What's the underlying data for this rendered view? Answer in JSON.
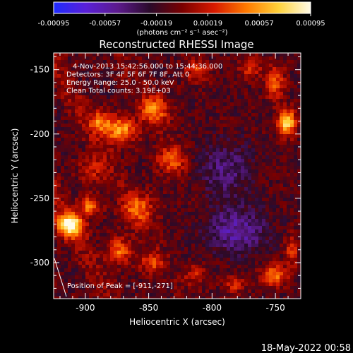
{
  "chart_data": {
    "type": "heatmap",
    "title": "Reconstructed RHESSI Image",
    "colorbar": {
      "min": -0.00095,
      "max": 0.00095,
      "ticks": [
        "-0.00095",
        "-0.00057",
        "-0.00019",
        "0.00019",
        "0.00057",
        "0.00095"
      ],
      "tick_values": [
        -0.00095,
        -0.00057,
        -0.00019,
        0.00019,
        0.00057,
        0.00095
      ],
      "unit_label": "(photons cm⁻² s⁻¹ asec⁻²)",
      "colors": [
        "#1e2bff",
        "#5a20d8",
        "#5c1a8c",
        "#2a0a2a",
        "#7a0000",
        "#d81a00",
        "#ff7a00",
        "#ffd23a",
        "#fffbe8"
      ]
    },
    "xlabel": "Heliocentric X (arcsec)",
    "ylabel": "Heliocentric Y (arcsec)",
    "xlim": [
      -925,
      -730
    ],
    "ylim": [
      -328,
      -137
    ],
    "x_ticks": [
      "-900",
      "-850",
      "-800",
      "-750"
    ],
    "x_tick_values": [
      -900,
      -850,
      -800,
      -750
    ],
    "y_ticks": [
      "-150",
      "-200",
      "-250",
      "-300"
    ],
    "y_tick_values": [
      -150,
      -200,
      -250,
      -300
    ],
    "info_lines": [
      "4-Nov-2013 15:42:56.000 to 15:44:36.000",
      "Detectors: 3F 4F 5F 6F 7F 8F, Att 0",
      "Energy Range: 25.0 - 50.0 keV",
      "Clean     Total counts: 3.19E+03"
    ],
    "peak_label": "Position of Peak = [-911,-271]",
    "peak": {
      "x": -911,
      "y": -271
    },
    "hotspots": [
      {
        "x": -912,
        "y": -271,
        "amp": 0.00105,
        "sx": 7,
        "sy": 6
      },
      {
        "x": -897,
        "y": -256,
        "amp": 0.00055,
        "sx": 6,
        "sy": 5
      },
      {
        "x": -872,
        "y": -197,
        "amp": 0.00068,
        "sx": 9,
        "sy": 7
      },
      {
        "x": -888,
        "y": -190,
        "amp": 0.0005,
        "sx": 6,
        "sy": 6
      },
      {
        "x": -845,
        "y": -181,
        "amp": 0.00055,
        "sx": 8,
        "sy": 8
      },
      {
        "x": -832,
        "y": -220,
        "amp": 0.0005,
        "sx": 8,
        "sy": 7
      },
      {
        "x": -858,
        "y": -258,
        "amp": 0.00048,
        "sx": 9,
        "sy": 8
      },
      {
        "x": -873,
        "y": -291,
        "amp": 0.00052,
        "sx": 7,
        "sy": 7
      },
      {
        "x": -848,
        "y": -300,
        "amp": 0.0004,
        "sx": 7,
        "sy": 6
      },
      {
        "x": -895,
        "y": -228,
        "amp": 0.0003,
        "sx": 7,
        "sy": 8
      },
      {
        "x": -741,
        "y": -191,
        "amp": 0.0009,
        "sx": 5,
        "sy": 7
      },
      {
        "x": -750,
        "y": -160,
        "amp": 0.0005,
        "sx": 5,
        "sy": 9
      },
      {
        "x": -770,
        "y": -148,
        "amp": 0.0004,
        "sx": 6,
        "sy": 6
      },
      {
        "x": -751,
        "y": -310,
        "amp": 0.0006,
        "sx": 7,
        "sy": 6
      },
      {
        "x": -737,
        "y": -291,
        "amp": 0.00038,
        "sx": 4,
        "sy": 8
      },
      {
        "x": -782,
        "y": -317,
        "amp": 0.00035,
        "sx": 6,
        "sy": 5
      },
      {
        "x": -813,
        "y": -310,
        "amp": 0.0003,
        "sx": 7,
        "sy": 6
      },
      {
        "x": -812,
        "y": -151,
        "amp": 0.00035,
        "sx": 7,
        "sy": 6
      },
      {
        "x": -781,
        "y": -275,
        "amp": -0.00042,
        "sx": 16,
        "sy": 12
      },
      {
        "x": -790,
        "y": -228,
        "amp": -0.0003,
        "sx": 14,
        "sy": 14
      }
    ]
  },
  "timestamp": "18-May-2022 00:58"
}
